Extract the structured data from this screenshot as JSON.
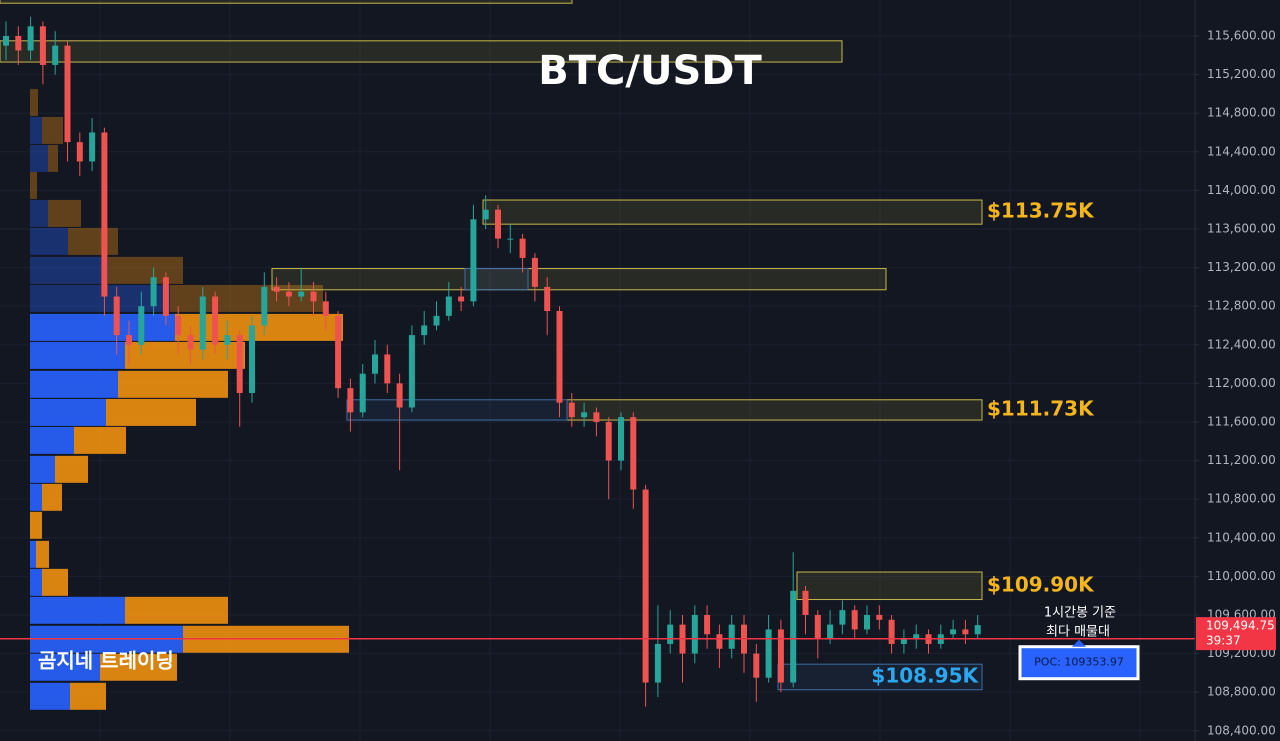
{
  "chart_data": {
    "type": "candlestick",
    "title": "BTC/USDT",
    "watermark": "곰지네 트레이딩",
    "ylim": [
      108294,
      115973
    ],
    "yticks": [
      {
        "value": 108400,
        "label": "108,400.00"
      },
      {
        "value": 108800,
        "label": "108,800.00"
      },
      {
        "value": 109200,
        "label": "109,200.00"
      },
      {
        "value": 109600,
        "label": "109,600.00"
      },
      {
        "value": 110000,
        "label": "110,000.00"
      },
      {
        "value": 110400,
        "label": "110,400.00"
      },
      {
        "value": 110800,
        "label": "110,800.00"
      },
      {
        "value": 111200,
        "label": "111,200.00"
      },
      {
        "value": 111600,
        "label": "111,600.00"
      },
      {
        "value": 112000,
        "label": "112,000.00"
      },
      {
        "value": 112400,
        "label": "112,400.00"
      },
      {
        "value": 112800,
        "label": "112,800.00"
      },
      {
        "value": 113200,
        "label": "113,200.00"
      },
      {
        "value": 113600,
        "label": "113,600.00"
      },
      {
        "value": 114000,
        "label": "114,000.00"
      },
      {
        "value": 114400,
        "label": "114,400.00"
      },
      {
        "value": 114800,
        "label": "114,800.00"
      },
      {
        "value": 115200,
        "label": "115,200.00"
      },
      {
        "value": 115600,
        "label": "115,600.00"
      }
    ],
    "grid": true,
    "up_color": "#26a69a",
    "down_color": "#ef5350",
    "open": [
      115500,
      115600,
      115450,
      115700,
      115300,
      115500,
      114500,
      114300,
      114600,
      112900,
      112500,
      112400,
      112800,
      113100,
      112700,
      112500,
      112350,
      112900,
      112400,
      112500,
      111900,
      112600,
      113000,
      112950,
      112900,
      112950,
      112850,
      112700,
      111950,
      111700,
      112100,
      112300,
      112000,
      111750,
      112500,
      112600,
      112700,
      112900,
      112850,
      113700,
      113800,
      113500,
      113500,
      113300,
      113000,
      112750,
      111800,
      111650,
      111700,
      111600,
      111200,
      111650,
      110900,
      108900,
      109300,
      109500,
      109200,
      109600,
      109400,
      109250,
      109500,
      109200,
      108950,
      109450,
      108900,
      109850,
      109600,
      109350,
      109500,
      109650,
      109450,
      109600,
      109550,
      109300,
      109350,
      109400,
      109300,
      109400,
      109450,
      109400
    ],
    "high": [
      115750,
      115700,
      115800,
      115750,
      115650,
      115550,
      114600,
      114750,
      114650,
      113000,
      112650,
      112950,
      113200,
      113150,
      112800,
      112600,
      113000,
      112950,
      112650,
      112550,
      112700,
      113150,
      113100,
      113050,
      113200,
      113050,
      112950,
      112750,
      112050,
      112200,
      112450,
      112400,
      112100,
      112600,
      112750,
      112850,
      113050,
      113000,
      113850,
      113950,
      113850,
      113650,
      113550,
      113350,
      113100,
      112800,
      111900,
      111800,
      111750,
      111650,
      111700,
      111700,
      110950,
      109700,
      109650,
      109600,
      109700,
      109700,
      109500,
      109600,
      109600,
      109300,
      109600,
      109550,
      110250,
      109900,
      109650,
      109650,
      109750,
      109700,
      109700,
      109700,
      109600,
      109450,
      109500,
      109450,
      109500,
      109550,
      109550,
      109600
    ],
    "low": [
      115350,
      115300,
      115350,
      115100,
      115200,
      114300,
      114150,
      114200,
      112700,
      112300,
      112200,
      112300,
      112700,
      112600,
      112300,
      112200,
      112250,
      112300,
      112250,
      111550,
      111800,
      112500,
      112850,
      112800,
      112850,
      112700,
      112550,
      111850,
      111500,
      111650,
      112000,
      111900,
      111100,
      111700,
      112400,
      112550,
      112650,
      112750,
      112800,
      113600,
      113400,
      113350,
      113150,
      112850,
      112500,
      111650,
      111550,
      111550,
      111450,
      110800,
      111100,
      110700,
      108650,
      108750,
      109200,
      108900,
      109100,
      109250,
      109050,
      109150,
      109000,
      108700,
      108900,
      108800,
      108850,
      109400,
      109150,
      109300,
      109400,
      109350,
      109400,
      109450,
      109200,
      109200,
      109250,
      109200,
      109250,
      109350,
      109300,
      109350
    ],
    "close": [
      115600,
      115450,
      115700,
      115300,
      115500,
      114500,
      114300,
      114600,
      112900,
      112500,
      112400,
      112800,
      113100,
      112700,
      112500,
      112350,
      112900,
      112400,
      112500,
      111900,
      112600,
      113000,
      112950,
      112900,
      112950,
      112850,
      112700,
      111950,
      111700,
      112100,
      112300,
      112000,
      111750,
      112500,
      112600,
      112700,
      112900,
      112850,
      113700,
      113800,
      113500,
      113500,
      113300,
      113000,
      112750,
      111800,
      111650,
      111700,
      111600,
      111200,
      111650,
      110900,
      108900,
      109300,
      109500,
      109200,
      109600,
      109400,
      109250,
      109500,
      109200,
      108950,
      109450,
      108900,
      109850,
      109600,
      109350,
      109500,
      109650,
      109450,
      109600,
      109550,
      109300,
      109350,
      109400,
      109300,
      109400,
      109450,
      109400,
      109494.75
    ],
    "current_price": {
      "value": 109494.75,
      "label": "109,494.75"
    },
    "countdown": "39:37",
    "zones": [
      {
        "top": 116020,
        "bottom": 115940,
        "color": "#c9b84a"
      },
      {
        "top": 115550,
        "bottom": 115330,
        "color": "#c9b84a"
      },
      {
        "top": 113900,
        "bottom": 113650,
        "color": "#c9b84a",
        "label": "$113.75K"
      },
      {
        "top": 113190,
        "bottom": 112970,
        "color": "#c9b84a"
      },
      {
        "top": 111830,
        "bottom": 111620,
        "color": "#c9b84a",
        "label": "$111.73K"
      },
      {
        "top": 111830,
        "bottom": 111620,
        "color": "#3d6fa8"
      },
      {
        "top": 113190,
        "bottom": 112970,
        "color": "#3d6fa8"
      },
      {
        "top": 110045,
        "bottom": 109760,
        "color": "#c9b84a",
        "label": "$109.90K"
      },
      {
        "top": 109090,
        "bottom": 108825,
        "color": "#3d6fa8",
        "label": "$108.95K"
      }
    ],
    "zone_label_colors": {
      "#c9b84a": "#f5b51b",
      "#3d6fa8": "#2ba7f0"
    },
    "volume_profile": {
      "prices": [
        114906,
        114616,
        114326,
        114046,
        113756,
        113466,
        113166,
        112875,
        112575,
        112285,
        111985,
        111694,
        111404,
        111104,
        110814,
        110524,
        110223,
        109933,
        109643,
        109343,
        109053,
        108752
      ],
      "buy": [
        0,
        12,
        18,
        0,
        18,
        38,
        78,
        140,
        145,
        95,
        88,
        76,
        44,
        25,
        12,
        0,
        6,
        12,
        95,
        153,
        70,
        40
      ],
      "sell": [
        8,
        21,
        10,
        7,
        33,
        50,
        75,
        153,
        168,
        120,
        110,
        90,
        52,
        33,
        20,
        12,
        13,
        26,
        103,
        166,
        77,
        36
      ],
      "value_area": [
        108600,
        112700
      ],
      "buy_color": "#2962ff",
      "sell_color": "#f0900f"
    },
    "poc": {
      "value": 109353.97,
      "label": "POC: 109353.97",
      "color": "#f23645"
    },
    "note": [
      "1시간봉 기준",
      "최다 매물대"
    ]
  }
}
